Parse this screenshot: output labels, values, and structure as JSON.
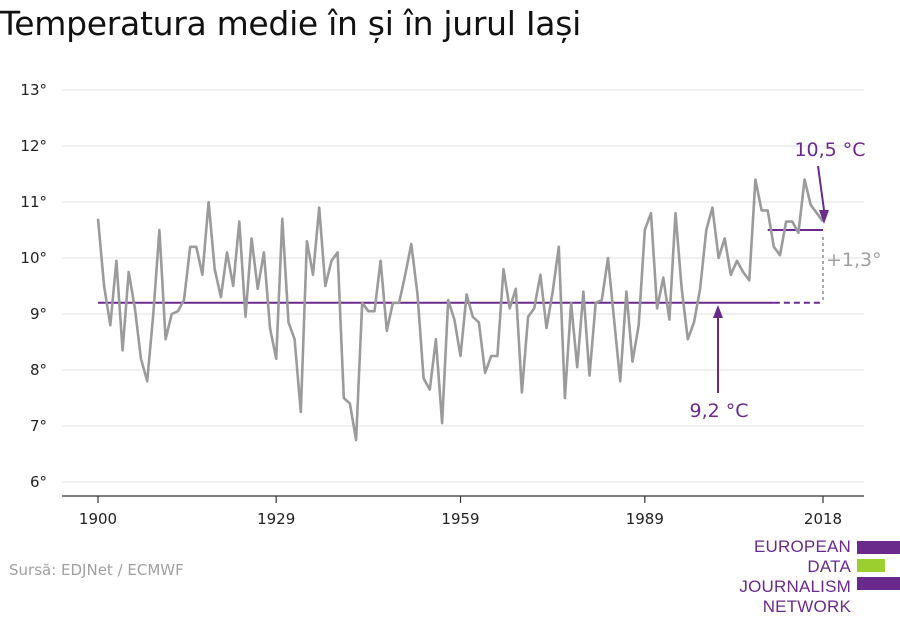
{
  "title": "Temperatura medie în și în jurul Iași",
  "source": "Sursă: EDJNet / ECMWF",
  "logo": {
    "line1": "EUROPEAN",
    "line2": "DATA JOURNALISM",
    "line3": "NETWORK"
  },
  "colors": {
    "series": "#9b9b9b",
    "accent": "#6a2a8c",
    "grid": "#e6e6e6",
    "axis": "#333333",
    "logo_green": "#9bcf2f"
  },
  "chart_data": {
    "type": "line",
    "title": "Temperatura medie în și în jurul Iași",
    "xlabel": "",
    "ylabel": "",
    "xlim": [
      1900,
      2018
    ],
    "ylim": [
      6,
      13
    ],
    "x_ticks": [
      1900,
      1929,
      1959,
      1989,
      2018
    ],
    "y_ticks": [
      6,
      7,
      8,
      9,
      10,
      11,
      12,
      13
    ],
    "y_tick_labels": [
      "6°",
      "7°",
      "8°",
      "9°",
      "10°",
      "11°",
      "12°",
      "13°"
    ],
    "grid": true,
    "series": [
      {
        "x": [
          1900,
          1901,
          1902,
          1903,
          1904,
          1905,
          1906,
          1907,
          1908,
          1909,
          1910,
          1911,
          1912,
          1913,
          1914,
          1915,
          1916,
          1917,
          1918,
          1919,
          1920,
          1921,
          1922,
          1923,
          1924,
          1925,
          1926,
          1927,
          1928,
          1929,
          1930,
          1931,
          1932,
          1933,
          1934,
          1935,
          1936,
          1937,
          1938,
          1939,
          1940,
          1941,
          1942,
          1943,
          1944,
          1945,
          1946,
          1947,
          1948,
          1949,
          1950,
          1951,
          1952,
          1953,
          1954,
          1955,
          1956,
          1957,
          1958,
          1959,
          1960,
          1961,
          1962,
          1963,
          1964,
          1965,
          1966,
          1967,
          1968,
          1969,
          1970,
          1971,
          1972,
          1973,
          1974,
          1975,
          1976,
          1977,
          1978,
          1979,
          1980,
          1981,
          1982,
          1983,
          1984,
          1985,
          1986,
          1987,
          1988,
          1989,
          1990,
          1991,
          1992,
          1993,
          1994,
          1995,
          1996,
          1997,
          1998,
          1999,
          2000,
          2001,
          2002,
          2003,
          2004,
          2005,
          2006,
          2007,
          2008,
          2009,
          2010,
          2011,
          2012,
          2013,
          2014,
          2015,
          2016,
          2017,
          2018
        ],
        "values": [
          10.7,
          9.5,
          8.8,
          9.95,
          8.35,
          9.75,
          9.1,
          8.2,
          7.8,
          9.0,
          10.5,
          8.55,
          9.0,
          9.05,
          9.25,
          10.2,
          10.2,
          9.7,
          11.0,
          9.8,
          9.3,
          10.1,
          9.5,
          10.65,
          8.95,
          10.35,
          9.45,
          10.1,
          8.75,
          8.2,
          10.7,
          8.85,
          8.55,
          7.25,
          10.3,
          9.7,
          10.9,
          9.5,
          9.95,
          10.1,
          7.5,
          7.4,
          6.75,
          9.2,
          9.05,
          9.05,
          9.95,
          8.7,
          9.2,
          9.2,
          9.7,
          10.25,
          9.35,
          7.85,
          7.65,
          8.55,
          7.05,
          9.25,
          8.9,
          8.25,
          9.35,
          8.95,
          8.85,
          7.95,
          8.25,
          8.25,
          9.8,
          9.1,
          9.45,
          7.6,
          8.95,
          9.1,
          9.7,
          8.75,
          9.4,
          10.2,
          7.5,
          9.2,
          8.05,
          9.4,
          7.9,
          9.2,
          9.25,
          10.0,
          8.9,
          7.8,
          9.4,
          8.15,
          8.8,
          10.5,
          10.8,
          9.1,
          9.65,
          8.9,
          10.8,
          9.45,
          8.55,
          8.85,
          9.45,
          10.5,
          10.9,
          10.0,
          10.35,
          9.7,
          9.95,
          9.75,
          9.6,
          11.4,
          10.85,
          10.85,
          10.2,
          10.05,
          10.65,
          10.65,
          10.45,
          11.4,
          10.95,
          10.8,
          10.65
        ]
      }
    ],
    "annotations": {
      "baseline_label": "9,2 °C",
      "baseline_value": 9.2,
      "recent_label": "10,5 °C",
      "recent_value": 10.5,
      "diff_label": "+1,3°"
    }
  }
}
